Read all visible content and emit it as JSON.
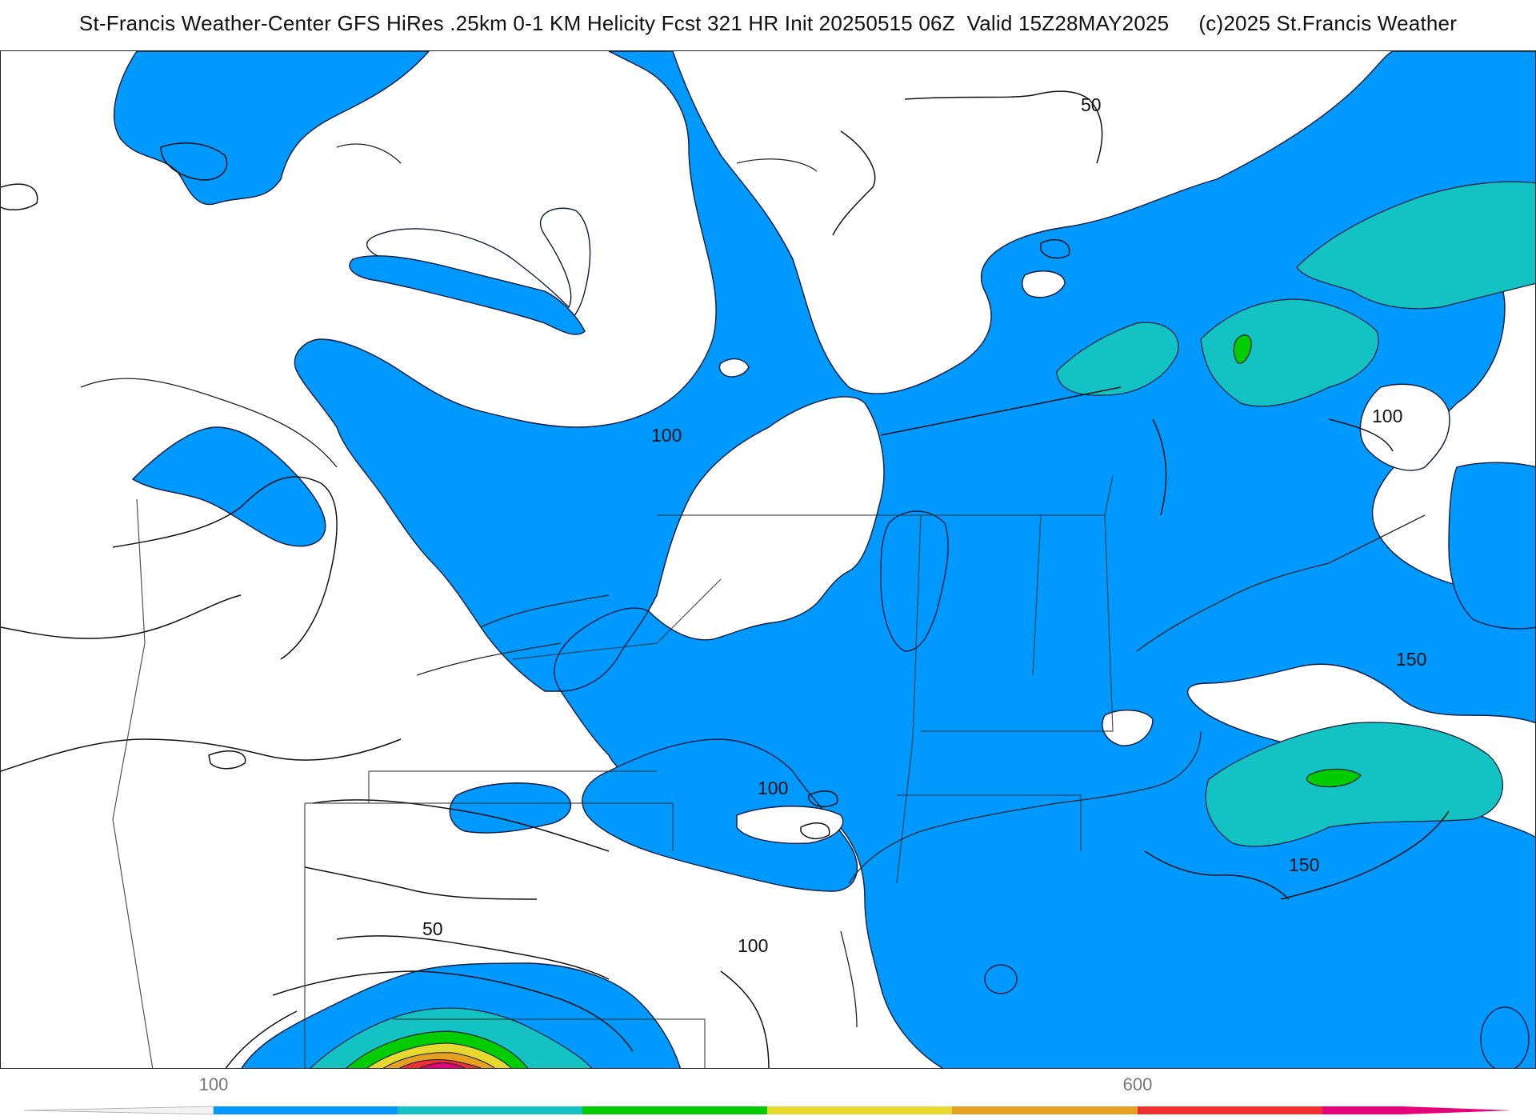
{
  "header": {
    "title": "St-Francis Weather-Center GFS HiRes .25km 0-1 KM Helicity Fcst 321 HR Init 20250515 06Z  Valid 15Z28MAY2025     (c)2025 St.Francis Weather"
  },
  "map": {
    "contour_labels": [
      "50",
      "100",
      "100",
      "100",
      "100",
      "150",
      "150",
      "50",
      "100"
    ]
  },
  "colorbar": {
    "tick_labels": [
      "100",
      "600"
    ],
    "colors": {
      "blue": "#0099ff",
      "teal": "#13c2c2",
      "green": "#00cc00",
      "yellow": "#e6d82e",
      "orange": "#e6a020",
      "red": "#f03030",
      "magenta": "#e6007a"
    }
  }
}
